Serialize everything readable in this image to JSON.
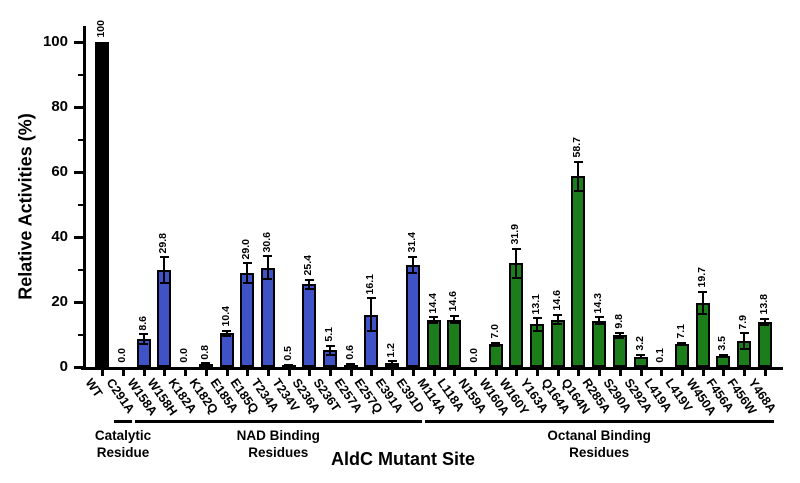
{
  "chart_data": {
    "type": "bar",
    "title": "",
    "ylabel": "Relative Activities (%)",
    "xlabel": "AldC Mutant Site",
    "ylim": [
      0,
      100
    ],
    "y_major_ticks": [
      0,
      20,
      40,
      60,
      80,
      100
    ],
    "y_minor_ticks": [
      10,
      30,
      50,
      70,
      90
    ],
    "grid": false,
    "legend": false,
    "error_bars": true,
    "value_label_rotation": "vertical",
    "colors": {
      "catalytic": "#000000",
      "nad": "#4053C6",
      "octanal": "#1B7E1B"
    },
    "groups": [
      {
        "name": "catalytic",
        "label_line1": "Catalytic",
        "label_line2": "Residue",
        "first_bar": 1,
        "last_bar": 1
      },
      {
        "name": "nad",
        "label_line1": "NAD Binding",
        "label_line2": "Residues",
        "first_bar": 2,
        "last_bar": 15
      },
      {
        "name": "octanal",
        "label_line1": "Octanal Binding",
        "label_line2": "Residues",
        "first_bar": 16,
        "last_bar": 32
      }
    ],
    "bars": [
      {
        "mutant": "WT",
        "value": 100,
        "error": 0,
        "value_label": "100",
        "color": "#000000"
      },
      {
        "mutant": "C291A",
        "value": 0.0,
        "error": 0,
        "value_label": "0.0",
        "color": "#000000"
      },
      {
        "mutant": "W158A",
        "value": 8.6,
        "error": 1.5,
        "value_label": "8.6",
        "color": "#4053C6"
      },
      {
        "mutant": "W158H",
        "value": 29.8,
        "error": 4.0,
        "value_label": "29.8",
        "color": "#4053C6"
      },
      {
        "mutant": "K182A",
        "value": 0.0,
        "error": 0,
        "value_label": "0.0",
        "color": "#4053C6"
      },
      {
        "mutant": "K182Q",
        "value": 0.8,
        "error": 0.3,
        "value_label": "0.8",
        "color": "#4053C6"
      },
      {
        "mutant": "E185A",
        "value": 10.4,
        "error": 0.8,
        "value_label": "10.4",
        "color": "#4053C6"
      },
      {
        "mutant": "E185Q",
        "value": 29.0,
        "error": 3.0,
        "value_label": "29.0",
        "color": "#4053C6"
      },
      {
        "mutant": "T234A",
        "value": 30.6,
        "error": 3.5,
        "value_label": "30.6",
        "color": "#4053C6"
      },
      {
        "mutant": "T234V",
        "value": 0.5,
        "error": 0.2,
        "value_label": "0.5",
        "color": "#4053C6"
      },
      {
        "mutant": "S236A",
        "value": 25.4,
        "error": 1.5,
        "value_label": "25.4",
        "color": "#4053C6"
      },
      {
        "mutant": "S236T",
        "value": 5.1,
        "error": 1.5,
        "value_label": "5.1",
        "color": "#4053C6"
      },
      {
        "mutant": "E257A",
        "value": 0.6,
        "error": 0.3,
        "value_label": "0.6",
        "color": "#4053C6"
      },
      {
        "mutant": "E257Q",
        "value": 16.1,
        "error": 5.0,
        "value_label": "16.1",
        "color": "#4053C6"
      },
      {
        "mutant": "E391A",
        "value": 1.2,
        "error": 0.5,
        "value_label": "1.2",
        "color": "#4053C6"
      },
      {
        "mutant": "E391D",
        "value": 31.4,
        "error": 2.5,
        "value_label": "31.4",
        "color": "#4053C6"
      },
      {
        "mutant": "M114A",
        "value": 14.4,
        "error": 1.0,
        "value_label": "14.4",
        "color": "#1B7E1B"
      },
      {
        "mutant": "L118A",
        "value": 14.6,
        "error": 1.2,
        "value_label": "14.6",
        "color": "#1B7E1B"
      },
      {
        "mutant": "N159A",
        "value": 0.0,
        "error": 0,
        "value_label": "0.0",
        "color": "#1B7E1B"
      },
      {
        "mutant": "W160A",
        "value": 7.0,
        "error": 0.4,
        "value_label": "7.0",
        "color": "#1B7E1B"
      },
      {
        "mutant": "W160Y",
        "value": 31.9,
        "error": 4.5,
        "value_label": "31.9",
        "color": "#1B7E1B"
      },
      {
        "mutant": "Y163A",
        "value": 13.1,
        "error": 2.0,
        "value_label": "13.1",
        "color": "#1B7E1B"
      },
      {
        "mutant": "Q164A",
        "value": 14.6,
        "error": 1.5,
        "value_label": "14.6",
        "color": "#1B7E1B"
      },
      {
        "mutant": "Q164N",
        "value": 58.7,
        "error": 4.5,
        "value_label": "58.7",
        "color": "#1B7E1B"
      },
      {
        "mutant": "R285A",
        "value": 14.3,
        "error": 1.0,
        "value_label": "14.3",
        "color": "#1B7E1B"
      },
      {
        "mutant": "S290A",
        "value": 9.8,
        "error": 0.8,
        "value_label": "9.8",
        "color": "#1B7E1B"
      },
      {
        "mutant": "S292A",
        "value": 3.2,
        "error": 0.5,
        "value_label": "3.2",
        "color": "#1B7E1B"
      },
      {
        "mutant": "L419A",
        "value": 0.1,
        "error": 0,
        "value_label": "0.1",
        "color": "#1B7E1B"
      },
      {
        "mutant": "L419V",
        "value": 7.1,
        "error": 0.4,
        "value_label": "7.1",
        "color": "#1B7E1B"
      },
      {
        "mutant": "W450A",
        "value": 19.7,
        "error": 3.5,
        "value_label": "19.7",
        "color": "#1B7E1B"
      },
      {
        "mutant": "F456A",
        "value": 3.5,
        "error": 0.3,
        "value_label": "3.5",
        "color": "#1B7E1B"
      },
      {
        "mutant": "F456W",
        "value": 7.9,
        "error": 2.5,
        "value_label": "7.9",
        "color": "#1B7E1B"
      },
      {
        "mutant": "Y468A",
        "value": 13.8,
        "error": 1.0,
        "value_label": "13.8",
        "color": "#1B7E1B"
      }
    ]
  }
}
